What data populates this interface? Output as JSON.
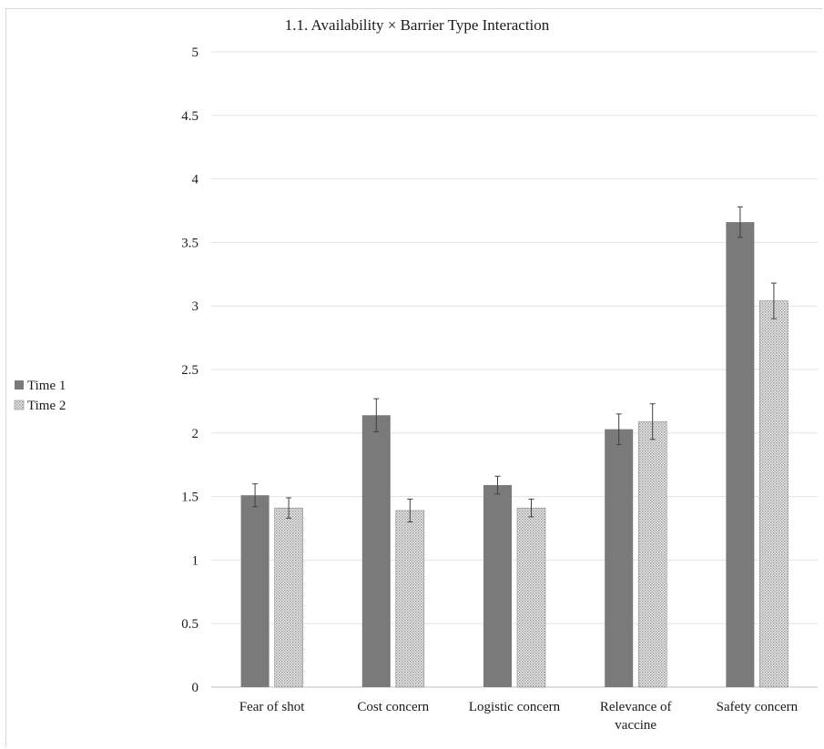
{
  "chart_data": {
    "type": "bar",
    "title": "1.1. Availability × Barrier Type Interaction",
    "xlabel": "",
    "ylabel": "",
    "ylim": [
      0,
      5
    ],
    "yticks": [
      "0",
      "0.5",
      "1",
      "1.5",
      "2",
      "2.5",
      "3",
      "3.5",
      "4",
      "4.5",
      "5"
    ],
    "categories": [
      "Fear of shot",
      "Cost concern",
      "Logistic concern",
      "Relevance of vaccine",
      "Safety concern"
    ],
    "category_lines": [
      [
        "Fear of shot"
      ],
      [
        "Cost concern"
      ],
      [
        "Logistic concern"
      ],
      [
        "Relevance of",
        "vaccine"
      ],
      [
        "Safety concern"
      ]
    ],
    "series": [
      {
        "name": "Time 1",
        "values": [
          1.51,
          2.14,
          1.59,
          2.03,
          3.66
        ],
        "errors": [
          0.09,
          0.13,
          0.07,
          0.12,
          0.12
        ],
        "color": "#7a7a7a",
        "pattern": "solid"
      },
      {
        "name": "Time 2",
        "values": [
          1.41,
          1.39,
          1.41,
          2.09,
          3.04
        ],
        "errors": [
          0.08,
          0.09,
          0.07,
          0.14,
          0.14
        ],
        "color": "#c8c8c8",
        "pattern": "dotted"
      }
    ],
    "grid": true,
    "legend_position": "left"
  }
}
